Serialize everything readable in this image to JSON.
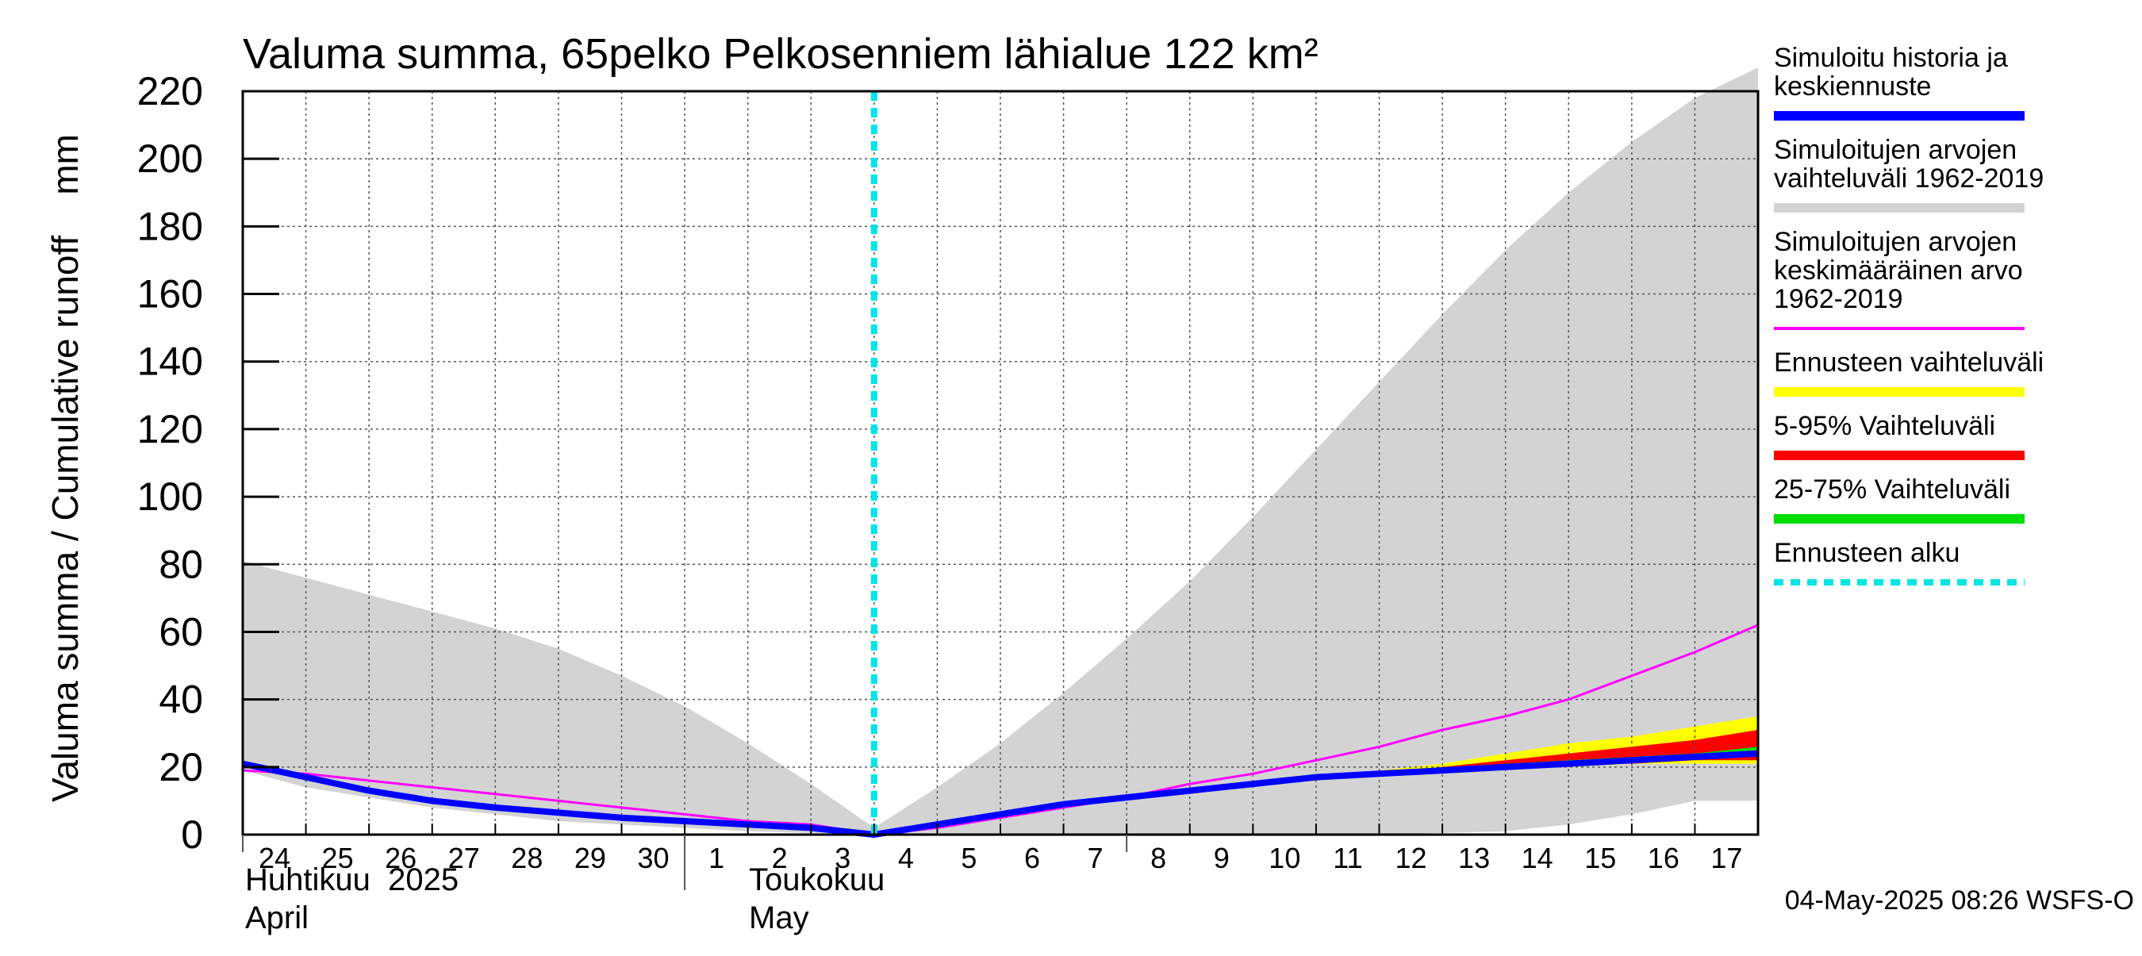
{
  "chart_data": {
    "type": "area",
    "title": "Valuma summa, 65pelko Pelkosenniem lähialue 122 km²",
    "ylabel": "Valuma summa / Cumulative runoff    mm",
    "ylim": [
      0,
      220
    ],
    "yticks": [
      0,
      20,
      40,
      60,
      80,
      100,
      120,
      140,
      160,
      180,
      200,
      220
    ],
    "xlim": [
      0,
      24
    ],
    "x_tick_labels": [
      "24",
      "25",
      "26",
      "27",
      "28",
      "29",
      "30",
      "1",
      "2",
      "3",
      "4",
      "5",
      "6",
      "7",
      "8",
      "9",
      "10",
      "11",
      "12",
      "13",
      "14",
      "15",
      "16",
      "17"
    ],
    "month_labels": [
      {
        "line1": "Huhtikuu  2025",
        "line2": "April"
      },
      {
        "line1": "Toukokuu",
        "line2": "May"
      }
    ],
    "grid": true,
    "legend_position": "right",
    "forecast_start_x": 10,
    "series": [
      {
        "name": "Simuloitujen arvojen vaihteluväli 1962-2019",
        "kind": "band",
        "color": "#d3d3d3",
        "x": [
          0,
          1,
          2,
          3,
          4,
          5,
          6,
          7,
          8,
          9,
          10,
          11,
          12,
          13,
          14,
          15,
          16,
          17,
          18,
          19,
          20,
          21,
          22,
          23,
          24
        ],
        "upper": [
          81,
          76,
          71,
          66,
          61,
          55,
          47,
          38,
          27,
          15,
          2,
          14,
          27,
          42,
          58,
          75,
          94,
          114,
          134,
          154,
          173,
          190,
          205,
          218,
          227
        ],
        "lower": [
          19,
          14,
          11,
          8,
          6,
          4,
          3,
          2,
          1,
          0.5,
          0,
          0,
          0,
          0,
          0,
          0,
          0,
          0,
          0,
          0.5,
          1,
          3,
          6,
          10,
          10
        ]
      },
      {
        "name": "Ennusteen vaihteluväli",
        "kind": "band",
        "color": "#ffff00",
        "x": [
          10,
          11,
          12,
          13,
          14,
          15,
          16,
          17,
          18,
          19,
          20,
          21,
          22,
          23,
          24
        ],
        "upper": [
          0,
          3,
          6,
          9,
          11,
          13,
          15,
          17,
          19,
          21,
          24,
          27,
          29,
          32,
          35
        ],
        "lower": [
          0,
          3,
          6,
          9,
          11,
          13,
          15,
          17,
          18,
          19,
          20,
          20,
          21,
          21,
          21
        ]
      },
      {
        "name": "5-95% Vaihteluväli",
        "kind": "band",
        "color": "#ff0000",
        "x": [
          10,
          11,
          12,
          13,
          14,
          15,
          16,
          17,
          18,
          19,
          20,
          21,
          22,
          23,
          24
        ],
        "upper": [
          0,
          3,
          6,
          9,
          11,
          13,
          15,
          17,
          18,
          20,
          22,
          24,
          26,
          28,
          31
        ],
        "lower": [
          0,
          3,
          6,
          9,
          11,
          13,
          15,
          17,
          18,
          19,
          20,
          21,
          21,
          22,
          22
        ]
      },
      {
        "name": "25-75% Vaihteluväli",
        "kind": "band",
        "color": "#00dd00",
        "x": [
          10,
          11,
          12,
          13,
          14,
          15,
          16,
          17,
          18,
          19,
          20,
          21,
          22,
          23,
          24
        ],
        "upper": [
          0,
          3,
          6,
          9,
          11,
          13,
          15,
          17,
          18,
          19,
          21,
          22,
          23,
          24,
          26
        ],
        "lower": [
          0,
          3,
          6,
          9,
          11,
          13,
          15,
          17,
          18,
          19,
          20,
          21,
          22,
          23,
          24
        ]
      },
      {
        "name": "Simuloitujen arvojen keskimääräinen arvo 1962-2019",
        "kind": "line",
        "color": "#ff00ff",
        "width": 3,
        "x": [
          0,
          1,
          2,
          3,
          4,
          5,
          6,
          7,
          8,
          9,
          10,
          11,
          12,
          13,
          14,
          15,
          16,
          17,
          18,
          19,
          20,
          21,
          22,
          23,
          24
        ],
        "y": [
          19,
          18,
          16,
          14,
          12,
          10,
          8,
          6,
          4,
          3,
          0,
          2,
          5,
          8,
          11,
          15,
          18,
          22,
          26,
          31,
          35,
          40,
          47,
          54,
          62
        ]
      },
      {
        "name": "Simuloitu historia ja keskiennuste",
        "kind": "line",
        "color": "#0000ff",
        "width": 8,
        "x": [
          0,
          1,
          2,
          3,
          4,
          5,
          6,
          7,
          8,
          9,
          10,
          11,
          12,
          13,
          14,
          15,
          16,
          17,
          18,
          19,
          20,
          21,
          22,
          23,
          24
        ],
        "y": [
          21,
          17,
          13,
          10,
          8,
          6.5,
          5,
          4,
          3,
          2,
          0,
          3,
          6,
          9,
          11,
          13,
          15,
          17,
          18,
          19,
          20,
          21,
          22,
          23,
          24
        ]
      },
      {
        "name": "Ennusteen alku",
        "kind": "vline",
        "color": "#00e5e5",
        "x": 10
      }
    ],
    "legend": [
      {
        "lines": [
          "Simuloitu historia ja",
          "keskiennuste"
        ],
        "color": "#0000ff",
        "style": "solid"
      },
      {
        "lines": [
          "Simuloitujen arvojen",
          "vaihteluväli 1962-2019"
        ],
        "color": "#d3d3d3",
        "style": "solid"
      },
      {
        "lines": [
          "Simuloitujen arvojen",
          "keskimääräinen arvo",
          "   1962-2019"
        ],
        "color": "#ff00ff",
        "style": "thin"
      },
      {
        "lines": [
          "Ennusteen vaihteluväli"
        ],
        "color": "#ffff00",
        "style": "solid"
      },
      {
        "lines": [
          "5-95% Vaihteluväli"
        ],
        "color": "#ff0000",
        "style": "solid"
      },
      {
        "lines": [
          "25-75% Vaihteluväli"
        ],
        "color": "#00dd00",
        "style": "solid"
      },
      {
        "lines": [
          "Ennusteen alku"
        ],
        "color": "#00e5e5",
        "style": "dashed"
      }
    ],
    "footer": "04-May-2025 08:26 WSFS-O"
  }
}
